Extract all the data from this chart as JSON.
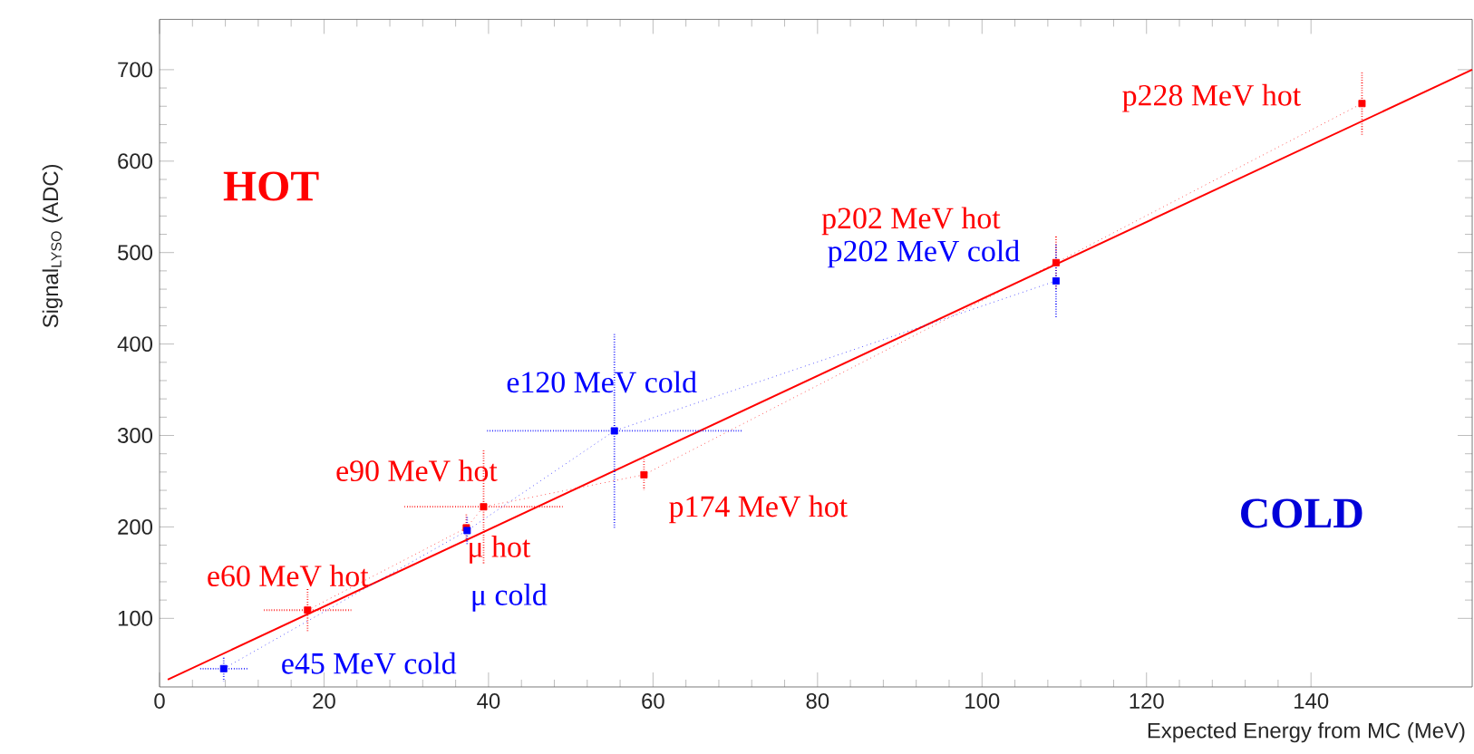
{
  "chart_data": {
    "type": "line",
    "xlabel": "Expected Energy from MC (MeV)",
    "ylabel": "Signal$_{LYSO}$ (ADC)",
    "xlim": [
      0,
      159.6
    ],
    "ylim": [
      25,
      755
    ],
    "xticks": [
      0,
      20,
      40,
      60,
      80,
      100,
      120,
      140
    ],
    "yticks": [
      100,
      200,
      300,
      400,
      500,
      600,
      700
    ],
    "grid": false,
    "series": [
      {
        "color": "#ff0000",
        "marker": "square",
        "line_style": "dotted",
        "x": [
          18,
          37.3,
          39.4,
          58.9,
          109,
          146.2
        ],
        "values": [
          109,
          199,
          222,
          257,
          489,
          663
        ],
        "errors": [
          24,
          15,
          63,
          17,
          30,
          35
        ],
        "xerrors": [
          5.3,
          null,
          9.6,
          null,
          null,
          null
        ]
      },
      {
        "color": "#0000ff",
        "marker": "square",
        "line_style": "dotted",
        "x": [
          7.8,
          37.4,
          55.3,
          109
        ],
        "values": [
          45,
          196,
          305,
          469
        ],
        "errors": [
          14,
          15,
          107,
          40
        ],
        "xerrors": [
          3,
          null,
          15.5,
          null
        ]
      },
      {
        "color": "#ff0000",
        "marker": "none",
        "line_style": "solid",
        "x": [
          1,
          159.6
        ],
        "values": [
          33,
          700
        ]
      }
    ],
    "annotations": [
      "HOT",
      "COLD",
      {
        "text": "e60 MeV hot",
        "x": 18,
        "y": 109
      },
      {
        "text": "e90 MeV hot",
        "x": 39.4,
        "y": 222
      },
      {
        "text": "μ hot",
        "x": 37.3,
        "y": 199
      },
      {
        "text": "μ cold",
        "x": 37.4,
        "y": 196
      },
      {
        "text": "p174 MeV hot",
        "x": 58.9,
        "y": 257
      },
      {
        "text": "e45 MeV cold",
        "x": 7.8,
        "y": 45
      },
      {
        "text": "e120 MeV cold",
        "x": 55.3,
        "y": 305
      },
      {
        "text": "p202 MeV hot",
        "x": 109,
        "y": 489
      },
      {
        "text": "p202 MeV cold",
        "x": 109,
        "y": 469
      },
      {
        "text": "p228 MeV hot",
        "x": 146.2,
        "y": 663
      }
    ]
  }
}
